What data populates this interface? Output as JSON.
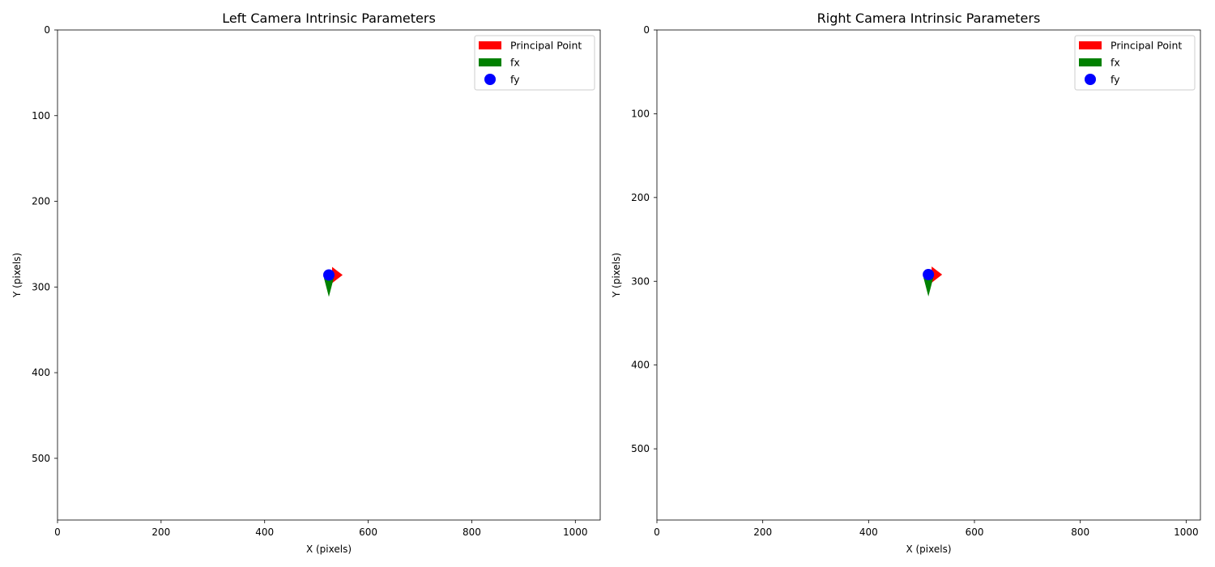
{
  "chart_data": [
    {
      "type": "scatter",
      "title": "Left Camera Intrinsic Parameters",
      "xlabel": "X (pixels)",
      "ylabel": "Y (pixels)",
      "xlim": [
        0,
        1048
      ],
      "ylim": [
        572,
        0
      ],
      "y_inverted": true,
      "grid": false,
      "legend_position": "top-right",
      "xticks": [
        0,
        200,
        400,
        600,
        800,
        1000
      ],
      "yticks": [
        0,
        100,
        200,
        300,
        400,
        500
      ],
      "principal_point": {
        "x": 524,
        "y": 286
      },
      "series": [
        {
          "name": "Principal Point",
          "marker": "arrow-right",
          "color": "#ff0000",
          "x": 524,
          "y": 286
        },
        {
          "name": "fx",
          "marker": "arrow-down",
          "color": "#008000",
          "x": 524,
          "y": 286
        },
        {
          "name": "fy",
          "marker": "circle",
          "color": "#0000ff",
          "x": 524,
          "y": 286
        }
      ]
    },
    {
      "type": "scatter",
      "title": "Right Camera Intrinsic Parameters",
      "xlabel": "X (pixels)",
      "ylabel": "Y (pixels)",
      "xlim": [
        0,
        1027
      ],
      "ylim": [
        585,
        0
      ],
      "y_inverted": true,
      "grid": false,
      "legend_position": "top-right",
      "xticks": [
        0,
        200,
        400,
        600,
        800,
        1000
      ],
      "yticks": [
        0,
        100,
        200,
        300,
        400,
        500
      ],
      "principal_point": {
        "x": 513,
        "y": 292
      },
      "series": [
        {
          "name": "Principal Point",
          "marker": "arrow-right",
          "color": "#ff0000",
          "x": 513,
          "y": 292
        },
        {
          "name": "fx",
          "marker": "arrow-down",
          "color": "#008000",
          "x": 513,
          "y": 292
        },
        {
          "name": "fy",
          "marker": "circle",
          "color": "#0000ff",
          "x": 513,
          "y": 292
        }
      ]
    }
  ]
}
